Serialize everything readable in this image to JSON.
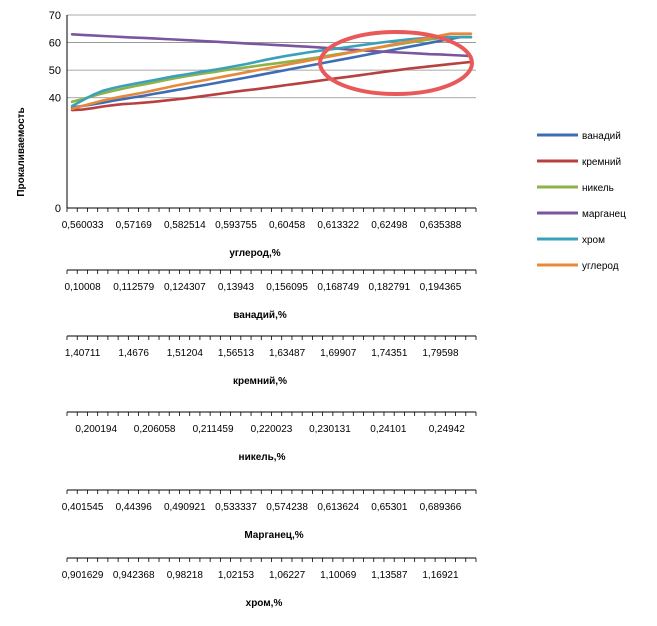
{
  "chart_data": {
    "type": "line",
    "ylabel": "Прокаливаемость",
    "yticks": [
      0,
      40,
      50,
      60,
      70
    ],
    "ylim": [
      0,
      70
    ],
    "grid": true,
    "legend_position": "right",
    "x_points": 40,
    "series": [
      {
        "name": "ванадий",
        "color": "#3d6db5",
        "values": [
          36.5,
          37.0,
          37.6,
          38.2,
          38.9,
          39.5,
          40.1,
          40.7,
          41.4,
          42.0,
          42.7,
          43.3,
          44.0,
          44.6,
          45.3,
          46.0,
          46.6,
          47.3,
          48.0,
          48.7,
          49.4,
          50.1,
          50.8,
          51.5,
          52.2,
          52.9,
          53.6,
          54.3,
          55.0,
          55.7,
          56.4,
          57.1,
          57.8,
          58.5,
          59.2,
          59.9,
          60.6,
          61.3,
          62.0,
          62.0
        ]
      },
      {
        "name": "кремний",
        "color": "#b8413f",
        "values": [
          35.5,
          35.7,
          36.2,
          36.8,
          37.3,
          37.7,
          37.9,
          38.2,
          38.5,
          38.9,
          39.3,
          39.7,
          40.2,
          40.7,
          41.2,
          41.7,
          42.2,
          42.7,
          43.1,
          43.6,
          44.1,
          44.6,
          45.1,
          45.6,
          46.1,
          46.6,
          47.1,
          47.6,
          48.1,
          48.6,
          49.1,
          49.6,
          50.1,
          50.6,
          51.0,
          51.4,
          51.8,
          52.2,
          52.6,
          53.0
        ]
      },
      {
        "name": "никель",
        "color": "#8db248",
        "values": [
          38.5,
          39.5,
          40.6,
          41.6,
          42.5,
          43.3,
          44.1,
          44.8,
          45.5,
          46.3,
          47.0,
          47.7,
          48.3,
          48.9,
          49.4,
          50.0,
          50.5,
          51.0,
          51.5,
          52.0,
          52.5,
          53.0,
          53.5,
          54.0,
          54.6,
          55.2,
          55.8,
          56.4,
          57.0,
          57.6,
          58.2,
          58.8,
          59.4,
          60.0,
          60.6,
          61.2,
          61.6,
          62.0,
          62.0,
          62.0
        ]
      },
      {
        "name": "марганец",
        "color": "#7b569e",
        "values": [
          63.0,
          62.8,
          62.6,
          62.4,
          62.2,
          62.0,
          61.8,
          61.7,
          61.5,
          61.3,
          61.1,
          60.9,
          60.7,
          60.5,
          60.3,
          60.1,
          59.9,
          59.7,
          59.5,
          59.3,
          59.1,
          58.9,
          58.7,
          58.5,
          58.3,
          58.0,
          57.8,
          57.5,
          57.3,
          57.0,
          56.8,
          56.6,
          56.4,
          56.2,
          56.0,
          55.8,
          55.7,
          55.5,
          55.3,
          55.1
        ]
      },
      {
        "name": "хром",
        "color": "#3ba1bb",
        "values": [
          37.0,
          39.0,
          41.0,
          42.5,
          43.5,
          44.3,
          45.0,
          45.7,
          46.4,
          47.1,
          47.8,
          48.4,
          49.0,
          49.6,
          50.2,
          50.8,
          51.5,
          52.2,
          53.0,
          53.8,
          54.5,
          55.2,
          55.8,
          56.4,
          56.9,
          57.4,
          57.9,
          58.4,
          58.9,
          59.4,
          59.9,
          60.4,
          60.8,
          61.2,
          61.5,
          61.8,
          62.0,
          62.0,
          62.0,
          62.0
        ]
      },
      {
        "name": "углерод",
        "color": "#e8883a",
        "values": [
          36.0,
          37.0,
          38.0,
          39.0,
          39.8,
          40.5,
          41.2,
          41.9,
          42.7,
          43.5,
          44.3,
          45.0,
          45.7,
          46.4,
          47.1,
          47.8,
          48.5,
          49.2,
          49.9,
          50.6,
          51.3,
          52.0,
          52.7,
          53.4,
          54.1,
          54.8,
          55.5,
          56.2,
          56.9,
          57.6,
          58.3,
          59.0,
          59.7,
          60.4,
          61.1,
          61.8,
          62.5,
          63.2,
          63.2,
          63.2
        ]
      }
    ],
    "x_axes": [
      {
        "ticks": [
          "0,560033",
          "0,57169",
          "0,582514",
          "0,593755",
          "0,60458",
          "0,613322",
          "0,62498",
          "0,635388"
        ],
        "title": "углерод,%",
        "title_x": 255
      },
      {
        "ticks": [
          "0,10008",
          "0,112579",
          "0,124307",
          "0,13943",
          "0,156095",
          "0,168749",
          "0,182791",
          "0,194365"
        ],
        "title": "ванадий,%",
        "title_x": 260
      },
      {
        "ticks": [
          "1,40711",
          "1,4676",
          "1,51204",
          "1,56513",
          "1,63487",
          "1,69907",
          "1,74351",
          "1,79598"
        ],
        "title": "кремний,%",
        "title_x": 260
      },
      {
        "ticks": [
          "0,200194",
          "0,206058",
          "0,211459",
          "0,220023",
          "0,230131",
          "0,24101",
          "0,24942"
        ],
        "title": "никель,%",
        "title_x": 262
      },
      {
        "ticks": [
          "0,401545",
          "0,44396",
          "0,490921",
          "0,533337",
          "0,574238",
          "0,613624",
          "0,65301",
          "0,689366"
        ],
        "title": "Марганец,%",
        "title_x": 274
      },
      {
        "ticks": [
          "0,901629",
          "0,942368",
          "0,98218",
          "1,02153",
          "1,06227",
          "1,10069",
          "1,13587",
          "1,16921"
        ],
        "title": "хром,%",
        "title_x": 264
      }
    ],
    "annotation": {
      "shape": "ellipse",
      "color": "#e8595a"
    }
  }
}
